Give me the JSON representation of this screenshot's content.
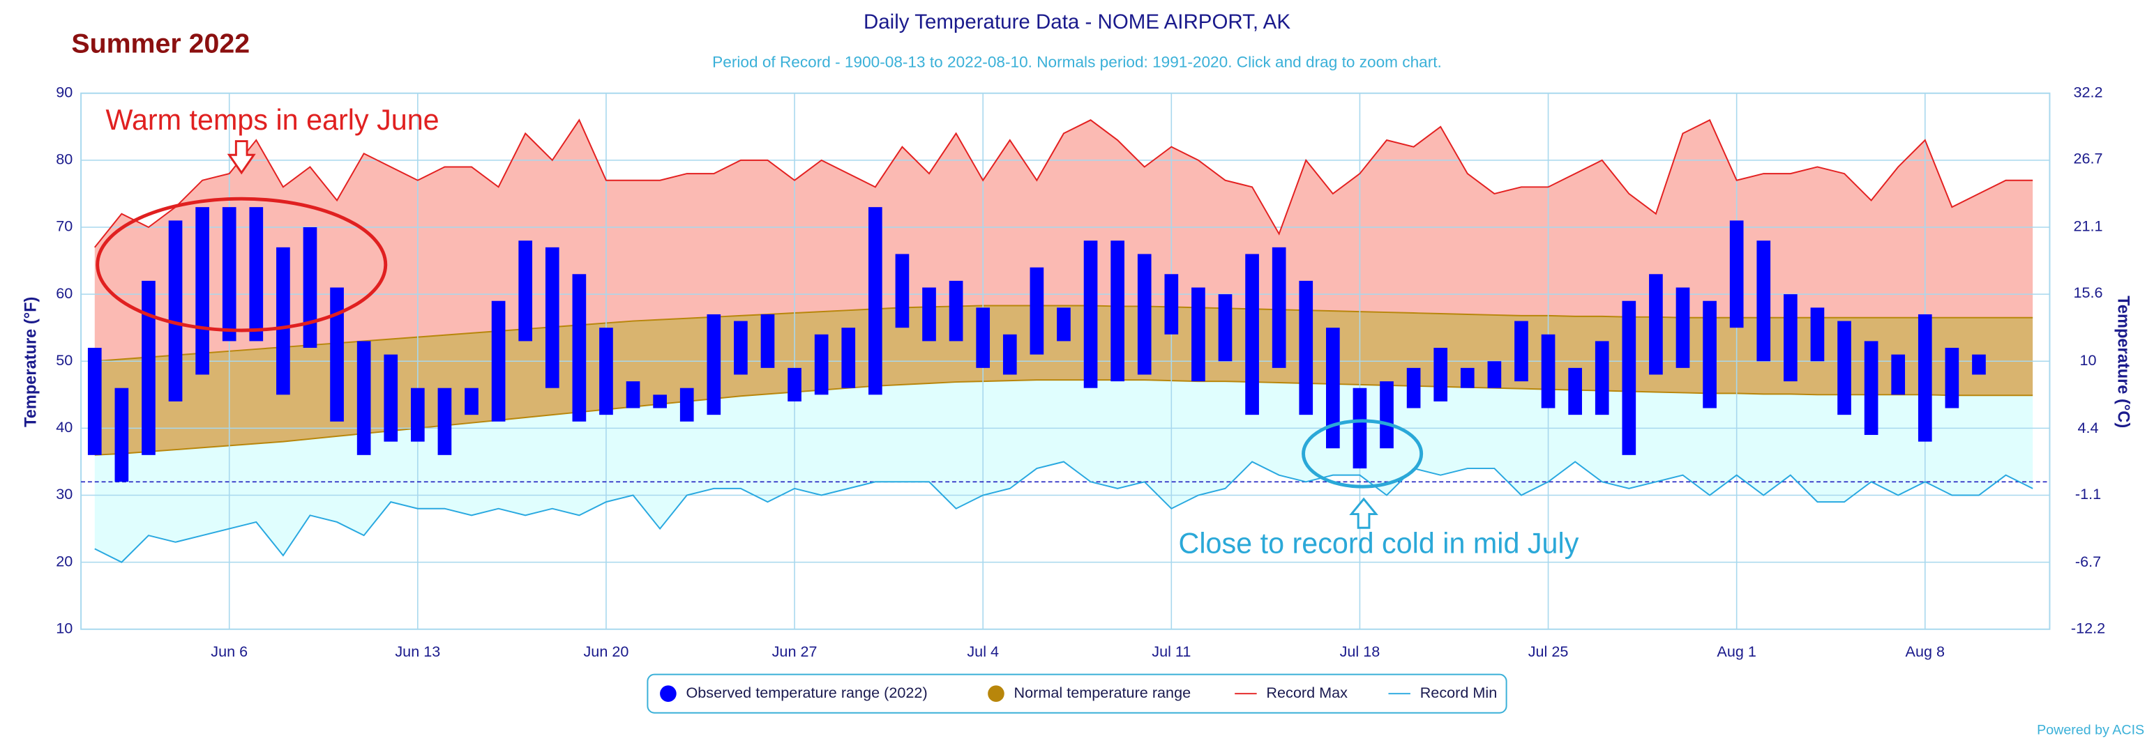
{
  "chart_data": {
    "type": "range",
    "title": "Daily Temperature Data - NOME AIRPORT, AK",
    "subtitle": "Period of Record - 1900-08-13 to 2022-08-10. Normals period: 1991-2020. Click and drag to zoom chart.",
    "heading": "Summer 2022",
    "y_label": "Temperature (°F)",
    "y2_label": "Temperature (°C)",
    "annotations": [
      "Warm temps in early June",
      "Close to record cold in mid July"
    ],
    "credit": "Powered by ACIS",
    "categories": [
      null,
      null,
      null,
      null,
      null,
      "Jun 6",
      null,
      null,
      null,
      null,
      null,
      null,
      "Jun 13",
      null,
      null,
      null,
      null,
      null,
      null,
      "Jun 20",
      null,
      null,
      null,
      null,
      null,
      null,
      "Jun 27",
      null,
      null,
      null,
      null,
      null,
      null,
      "Jul 4",
      null,
      null,
      null,
      null,
      null,
      null,
      "Jul 11",
      null,
      null,
      null,
      null,
      null,
      null,
      "Jul 18",
      null,
      null,
      null,
      null,
      null,
      null,
      "Jul 25",
      null,
      null,
      null,
      null,
      null,
      null,
      "Aug 1",
      null,
      null,
      null,
      null,
      null,
      null,
      "Aug 8",
      null,
      null,
      null,
      null
    ],
    "ylim": [
      10,
      90
    ],
    "yticks": [
      10,
      20,
      30,
      40,
      50,
      60,
      70,
      80,
      90
    ],
    "y2lim": [
      -12.2,
      32.2
    ],
    "y2ticks": [
      -12.2,
      -6.7,
      -1.1,
      4.4,
      10,
      15.6,
      21.1,
      26.7,
      32.2
    ],
    "reference_line": 32,
    "grid": true,
    "series": [
      {
        "name": "Observed temperature range (2022)",
        "color": "#0000ff",
        "high": [
          52,
          46,
          62,
          71,
          73,
          73,
          73,
          67,
          70,
          61,
          53,
          51,
          46,
          46,
          46,
          59,
          68,
          67,
          63,
          55,
          47,
          45,
          46,
          57,
          56,
          57,
          49,
          54,
          55,
          73,
          66,
          61,
          62,
          58,
          54,
          64,
          58,
          68,
          68,
          66,
          63,
          61,
          60,
          66,
          67,
          62,
          55,
          46,
          47,
          49,
          52,
          49,
          50,
          56,
          54,
          49,
          53,
          59,
          63,
          61,
          59,
          71,
          68,
          60,
          58,
          56,
          53,
          51,
          57,
          52,
          51,
          null,
          null
        ],
        "low": [
          36,
          32,
          36,
          44,
          48,
          53,
          53,
          45,
          52,
          41,
          36,
          38,
          38,
          36,
          42,
          41,
          53,
          46,
          41,
          42,
          43,
          43,
          41,
          42,
          48,
          49,
          44,
          45,
          46,
          45,
          55,
          53,
          53,
          49,
          48,
          51,
          53,
          46,
          47,
          48,
          54,
          47,
          50,
          42,
          49,
          42,
          37,
          34,
          37,
          43,
          44,
          46,
          46,
          47,
          43,
          42,
          42,
          36,
          48,
          49,
          43,
          55,
          50,
          47,
          50,
          42,
          39,
          45,
          38,
          43,
          48,
          null,
          null
        ]
      },
      {
        "name": "Normal temperature range",
        "color": "#c8a050",
        "high": [
          50.0,
          50.3,
          50.6,
          50.9,
          51.2,
          51.5,
          51.8,
          52.1,
          52.4,
          52.7,
          53.0,
          53.3,
          53.6,
          53.9,
          54.2,
          54.5,
          54.8,
          55.1,
          55.4,
          55.7,
          56.0,
          56.2,
          56.4,
          56.6,
          56.8,
          57.0,
          57.2,
          57.4,
          57.6,
          57.8,
          58.0,
          58.1,
          58.2,
          58.3,
          58.3,
          58.3,
          58.3,
          58.3,
          58.2,
          58.2,
          58.1,
          58.0,
          57.9,
          57.8,
          57.7,
          57.6,
          57.5,
          57.4,
          57.3,
          57.2,
          57.1,
          57.0,
          56.9,
          56.8,
          56.8,
          56.7,
          56.7,
          56.6,
          56.6,
          56.5,
          56.5,
          56.5,
          56.5,
          56.5,
          56.5,
          56.5,
          56.5,
          56.5,
          56.5,
          56.5,
          56.5,
          56.5,
          56.5
        ],
        "low": [
          36.0,
          36.2,
          36.5,
          36.8,
          37.1,
          37.4,
          37.7,
          38.0,
          38.4,
          38.8,
          39.2,
          39.6,
          40.0,
          40.4,
          40.8,
          41.2,
          41.6,
          42.0,
          42.4,
          42.8,
          43.2,
          43.6,
          44.0,
          44.4,
          44.8,
          45.1,
          45.4,
          45.7,
          46.0,
          46.3,
          46.5,
          46.7,
          46.9,
          47.0,
          47.1,
          47.2,
          47.2,
          47.2,
          47.2,
          47.2,
          47.1,
          47.0,
          47.0,
          46.9,
          46.8,
          46.7,
          46.6,
          46.5,
          46.4,
          46.3,
          46.2,
          46.1,
          46.0,
          45.9,
          45.8,
          45.7,
          45.6,
          45.5,
          45.4,
          45.3,
          45.2,
          45.2,
          45.1,
          45.1,
          45.0,
          45.0,
          45.0,
          45.0,
          45.0,
          44.9,
          44.9,
          44.9,
          44.9
        ]
      },
      {
        "name": "Record Max",
        "color": "#e32020",
        "values": [
          67,
          72,
          70,
          73,
          77,
          78,
          83,
          76,
          79,
          74,
          81,
          79,
          77,
          79,
          79,
          76,
          84,
          80,
          86,
          77,
          77,
          77,
          78,
          78,
          80,
          80,
          77,
          80,
          78,
          76,
          82,
          78,
          84,
          77,
          83,
          77,
          84,
          86,
          83,
          79,
          82,
          80,
          77,
          76,
          69,
          80,
          75,
          78,
          83,
          82,
          85,
          78,
          75,
          76,
          76,
          78,
          80,
          75,
          72,
          84,
          86,
          77,
          78,
          78,
          79,
          78,
          74,
          79,
          83,
          73,
          75,
          77,
          77
        ]
      },
      {
        "name": "Record Min",
        "color": "#28a8e0",
        "values": [
          22,
          20,
          24,
          23,
          24,
          25,
          26,
          21,
          27,
          26,
          24,
          29,
          28,
          28,
          27,
          28,
          27,
          28,
          27,
          29,
          30,
          25,
          30,
          31,
          31,
          29,
          31,
          30,
          31,
          32,
          32,
          32,
          28,
          30,
          31,
          34,
          35,
          32,
          31,
          32,
          28,
          30,
          31,
          35,
          33,
          32,
          33,
          33,
          30,
          34,
          33,
          34,
          34,
          30,
          32,
          35,
          32,
          31,
          32,
          33,
          30,
          33,
          30,
          33,
          29,
          29,
          32,
          30,
          32,
          30,
          30,
          33,
          31
        ]
      }
    ]
  }
}
